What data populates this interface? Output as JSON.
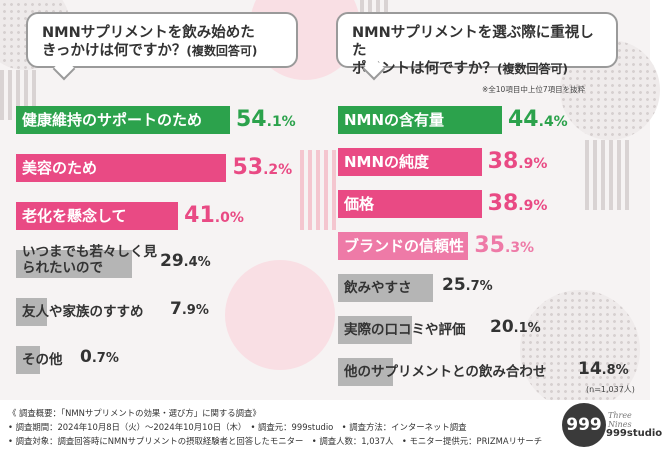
{
  "colors": {
    "green": "#2ca24c",
    "pink": "#e94a84",
    "pink_light": "#ee7aa7",
    "gray": "#b5b5b5",
    "dark": "#333333"
  },
  "left_question": {
    "line1": "NMNサプリメントを飲み始めた",
    "line2": "きっかけは何ですか？",
    "suffix": "(複数回答可)"
  },
  "right_question": {
    "line1": "NMNサプリメントを選ぶ際に重視した",
    "line2": "ポイントは何ですか？",
    "suffix": "(複数回答可)"
  },
  "right_note": "※全10項目中上位7項目を抜粋",
  "sample_size": "(n=1,037人)",
  "chart_data": [
    {
      "type": "bar",
      "orientation": "horizontal",
      "title": "NMNサプリメントを飲み始めたきっかけは何ですか？(複数回答可)",
      "unit": "%",
      "xlim": [
        0,
        54.1
      ],
      "categories": [
        "健康維持のサポートのため",
        "美容のため",
        "老化を懸念して",
        "いつまでも若々しく見られたいので",
        "友人や家族のすすめ",
        "その他"
      ],
      "values": [
        54.1,
        53.2,
        41.0,
        29.4,
        7.9,
        0.7
      ],
      "value_labels": [
        {
          "int": "54",
          "dec": ".1%"
        },
        {
          "int": "53",
          "dec": ".2%"
        },
        {
          "int": "41",
          "dec": ".0%"
        },
        {
          "int": "29",
          "dec": ".4%"
        },
        {
          "int": "7",
          "dec": ".9%"
        },
        {
          "int": "0",
          "dec": ".7%"
        }
      ]
    },
    {
      "type": "bar",
      "orientation": "horizontal",
      "title": "NMNサプリメントを選ぶ際に重視したポイントは何ですか？(複数回答可)",
      "unit": "%",
      "xlim": [
        0,
        44.4
      ],
      "categories": [
        "NMNの含有量",
        "NMNの純度",
        "価格",
        "ブランドの信頼性",
        "飲みやすさ",
        "実際の口コミや評価",
        "他のサプリメントとの飲み合わせ"
      ],
      "values": [
        44.4,
        38.9,
        38.9,
        35.3,
        25.7,
        20.1,
        14.8
      ],
      "value_labels": [
        {
          "int": "44",
          "dec": ".4%"
        },
        {
          "int": "38",
          "dec": ".9%"
        },
        {
          "int": "38",
          "dec": ".9%"
        },
        {
          "int": "35",
          "dec": ".3%"
        },
        {
          "int": "25",
          "dec": ".7%"
        },
        {
          "int": "20",
          "dec": ".1%"
        },
        {
          "int": "14",
          "dec": ".8%"
        }
      ]
    }
  ],
  "footer": {
    "line1": "《 調査概要：「NMNサプリメントの効果・選び方」に関する調査》",
    "line2": "• 調査期間：2024年10月8日（火）～2024年10月10日（木）　• 調査元：999studio　• 調査方法：インターネット調査",
    "line3": "• 調査対象：調査回答時にNMNサプリメントの摂取経験者と回答したモニター　• 調査人数：1,037人　• モニター提供元：PRIZMAリサーチ",
    "logo": "999",
    "brand_script": "Three Nines",
    "brand_name": "999studio"
  }
}
